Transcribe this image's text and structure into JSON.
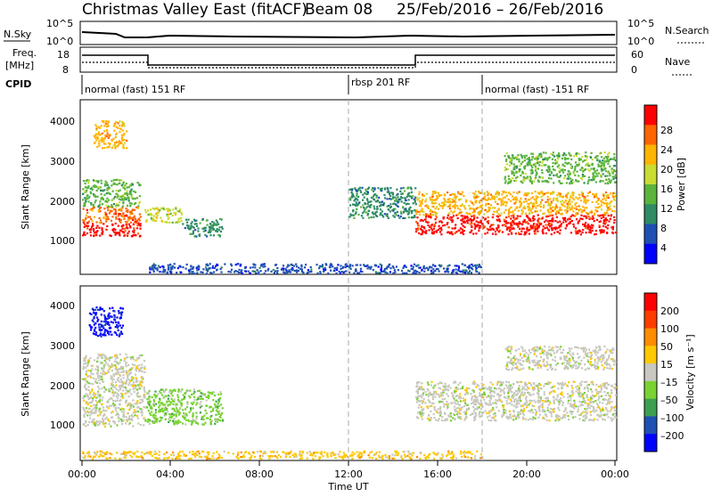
{
  "header": {
    "title": "Christmas Valley East (fitACF)",
    "beam": "Beam 08",
    "dates": "25/Feb/2016 – 26/Feb/2016"
  },
  "noise_panel": {
    "left_label": "N.Sky",
    "right_label": "N.Search",
    "y_top": "10^5",
    "y_bottom": "10^0"
  },
  "freq_panel": {
    "left_label_1": "Freq.",
    "left_label_2": "[MHz]",
    "right_label": "Nave",
    "left_ticks": [
      "18",
      "8"
    ],
    "right_ticks": [
      "60",
      "0"
    ]
  },
  "cpid": {
    "label": "CPID",
    "segments": [
      {
        "name": "normal (fast) 151 RF",
        "start_hour": 0
      },
      {
        "name": "rbsp 201 RF",
        "start_hour": 12
      },
      {
        "name": "normal (fast) -151 RF",
        "start_hour": 18
      }
    ]
  },
  "power_panel": {
    "ylabel": "Slant Range [km]",
    "yticks": [
      "4000",
      "3000",
      "2000",
      "1000"
    ],
    "colorbar_label": "Power [dB]",
    "colorbar_ticks": [
      "28",
      "24",
      "20",
      "16",
      "12",
      "8",
      "4"
    ]
  },
  "velocity_panel": {
    "ylabel": "Slant Range [km]",
    "yticks": [
      "4000",
      "3000",
      "2000",
      "1000"
    ],
    "colorbar_label": "Velocity [m s⁻¹]",
    "colorbar_ticks": [
      "200",
      "100",
      "50",
      "15",
      "–15",
      "–50",
      "–100",
      "–200"
    ]
  },
  "xaxis": {
    "label": "Time UT",
    "ticks": [
      "00:00",
      "04:00",
      "08:00",
      "12:00",
      "16:00",
      "20:00",
      "00:00"
    ]
  },
  "chart_data": {
    "type": "heatmap",
    "x_range_hours": [
      0,
      24
    ],
    "y_range_km": [
      180,
      4600
    ],
    "power_colors": [
      "#0000ff",
      "#1e50b4",
      "#2d8c64",
      "#5ab43c",
      "#c8dc32",
      "#ffb400",
      "#ff6400",
      "#ff0000"
    ],
    "velocity_colors": [
      "#0000ff",
      "#1e50b4",
      "#3ca050",
      "#78d232",
      "#c8c8c0",
      "#ffc800",
      "#ff8c00",
      "#ff3c00",
      "#ff0000"
    ],
    "power_regions": [
      {
        "x": [
          0.0,
          2.6
        ],
        "y": [
          1150,
          1500
        ],
        "c": 7
      },
      {
        "x": [
          0.0,
          2.6
        ],
        "y": [
          1500,
          1900
        ],
        "c": 6
      },
      {
        "x": [
          0.0,
          2.6
        ],
        "y": [
          1900,
          2600
        ],
        "c": 3
      },
      {
        "x": [
          0.5,
          2.0
        ],
        "y": [
          3400,
          4100
        ],
        "c": 5
      },
      {
        "x": [
          2.8,
          4.5
        ],
        "y": [
          1500,
          1900
        ],
        "c": 4
      },
      {
        "x": [
          4.5,
          6.3
        ],
        "y": [
          1150,
          1600
        ],
        "c": 2
      },
      {
        "x": [
          12.0,
          15.0
        ],
        "y": [
          1600,
          2400
        ],
        "c": 2
      },
      {
        "x": [
          15.0,
          24.0
        ],
        "y": [
          1200,
          1700
        ],
        "c": 7
      },
      {
        "x": [
          15.0,
          24.0
        ],
        "y": [
          1700,
          2300
        ],
        "c": 5
      },
      {
        "x": [
          19.0,
          24.0
        ],
        "y": [
          2500,
          3300
        ],
        "c": 3
      },
      {
        "x": [
          3.0,
          18.0
        ],
        "y": [
          200,
          450
        ],
        "c": 1
      }
    ],
    "velocity_regions": [
      {
        "x": [
          0.3,
          1.8
        ],
        "y": [
          3350,
          4100
        ],
        "c": 0
      },
      {
        "x": [
          0.0,
          2.8
        ],
        "y": [
          1050,
          2900
        ],
        "c": 4
      },
      {
        "x": [
          2.8,
          6.3
        ],
        "y": [
          1100,
          2000
        ],
        "c": 3
      },
      {
        "x": [
          15.0,
          24.0
        ],
        "y": [
          1200,
          2200
        ],
        "c": 4
      },
      {
        "x": [
          19.0,
          24.0
        ],
        "y": [
          2500,
          3100
        ],
        "c": 4
      },
      {
        "x": [
          0.0,
          18.0
        ],
        "y": [
          220,
          420
        ],
        "c": 5
      }
    ]
  }
}
